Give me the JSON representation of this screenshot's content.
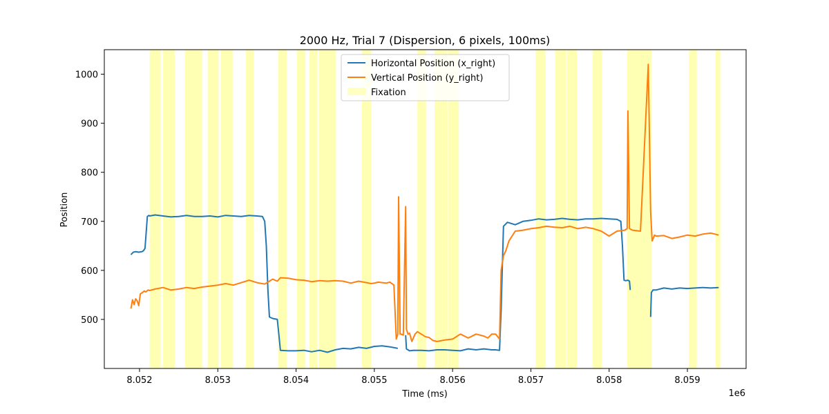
{
  "chart_data": {
    "type": "line",
    "title": "2000 Hz, Trial 7 (Dispersion, 6 pixels, 100ms)",
    "xlabel": "Time (ms)",
    "ylabel": "Position",
    "x_offset_label": "1e6",
    "xlim": [
      8.05155,
      8.05975
    ],
    "ylim": [
      400,
      1050
    ],
    "x_ticks": [
      8.052,
      8.053,
      8.054,
      8.055,
      8.056,
      8.057,
      8.058,
      8.059
    ],
    "x_tick_labels": [
      "8.052",
      "8.053",
      "8.054",
      "8.055",
      "8.056",
      "8.057",
      "8.058",
      "8.059"
    ],
    "y_ticks": [
      500,
      600,
      700,
      800,
      900,
      1000
    ],
    "y_tick_labels": [
      "500",
      "600",
      "700",
      "800",
      "900",
      "1000"
    ],
    "grid": false,
    "legend_position": "top-center",
    "legend": [
      {
        "label": "Horizontal Position (x_right)",
        "kind": "line",
        "color": "#1f77b4"
      },
      {
        "label": "Vertical Position (y_right)",
        "kind": "line",
        "color": "#ff7f0e"
      },
      {
        "label": "Fixation",
        "kind": "patch",
        "color": "#ffff99"
      }
    ],
    "fixation_color": "#ffff80",
    "fixation_opacity": 0.6,
    "fixations": [
      [
        8.05213,
        8.05227
      ],
      [
        8.0523,
        8.05245
      ],
      [
        8.05258,
        8.0528
      ],
      [
        8.05287,
        8.05301
      ],
      [
        8.05304,
        8.05319
      ],
      [
        8.05336,
        8.05346
      ],
      [
        8.05377,
        8.05388
      ],
      [
        8.05401,
        8.05412
      ],
      [
        8.05417,
        8.05427
      ],
      [
        8.05429,
        8.05451
      ],
      [
        8.05484,
        8.05496
      ],
      [
        8.05555,
        8.05566
      ],
      [
        8.05577,
        8.05593
      ],
      [
        8.05594,
        8.05608
      ],
      [
        8.05706,
        8.05719
      ],
      [
        8.05731,
        8.05745
      ],
      [
        8.05746,
        8.05759
      ],
      [
        8.05779,
        8.05791
      ],
      [
        8.05823,
        8.05854
      ],
      [
        8.05902,
        8.05912
      ],
      [
        8.05936,
        8.05942
      ]
    ],
    "series": [
      {
        "name": "Horizontal Position (x_right)",
        "color": "#1f77b4",
        "x": [
          8.05189,
          8.05192,
          8.05195,
          8.05199,
          8.05203,
          8.05205,
          8.05207,
          8.0521,
          8.05212,
          8.05213,
          8.0522,
          8.0523,
          8.0524,
          8.0525,
          8.0526,
          8.0527,
          8.0528,
          8.0529,
          8.053,
          8.0531,
          8.0532,
          8.0533,
          8.0534,
          8.0535,
          8.05357,
          8.0536,
          8.05362,
          8.05364,
          8.05366,
          8.0537,
          8.05376,
          8.05378,
          8.0538,
          8.0539,
          8.054,
          8.0541,
          8.0542,
          8.0543,
          8.0544,
          8.0545,
          8.0546,
          8.0547,
          8.0548,
          8.0549,
          8.055,
          8.0551,
          8.0552,
          8.0553,
          8.05531,
          8.0554,
          8.05541,
          8.05545,
          8.0555,
          8.0556,
          8.0557,
          8.0558,
          8.0559,
          8.056,
          8.0561,
          8.0562,
          8.0563,
          8.0564,
          8.0565,
          8.05655,
          8.0566,
          8.05662,
          8.05665,
          8.0567,
          8.0568,
          8.0569,
          8.057,
          8.0571,
          8.0572,
          8.0573,
          8.0574,
          8.0575,
          8.0576,
          8.0577,
          8.0578,
          8.0579,
          8.058,
          8.0581,
          8.05815,
          8.05817,
          8.05819,
          8.05821,
          8.05824,
          8.05826,
          8.05827,
          8.0583,
          8.0584,
          8.0585,
          8.05853,
          8.05854,
          8.05856,
          8.0586,
          8.0587,
          8.0588,
          8.0589,
          8.059,
          8.0591,
          8.0592,
          8.0593,
          8.0594
        ],
        "y": [
          632,
          637,
          638,
          637,
          638,
          640,
          645,
          710,
          712,
          711,
          713,
          711,
          709,
          710,
          712,
          710,
          710,
          711,
          709,
          712,
          711,
          710,
          712,
          711,
          710,
          700,
          650,
          560,
          505,
          502,
          500,
          470,
          437,
          436,
          436,
          437,
          434,
          437,
          433,
          438,
          441,
          440,
          443,
          441,
          445,
          446,
          444,
          441,
          null,
          468,
          440,
          436,
          437,
          437,
          436,
          438,
          438,
          437,
          436,
          440,
          438,
          440,
          438,
          438,
          437,
          520,
          690,
          698,
          693,
          700,
          702,
          705,
          703,
          704,
          706,
          704,
          703,
          705,
          705,
          706,
          705,
          704,
          700,
          650,
          580,
          579,
          580,
          578,
          560,
          null,
          null,
          null,
          505,
          555,
          560,
          560,
          564,
          562,
          564,
          563,
          564,
          565,
          564,
          565
        ]
      },
      {
        "name": "Vertical Position (y_right)",
        "color": "#ff7f0e",
        "x": [
          8.05189,
          8.05191,
          8.05193,
          8.05195,
          8.05197,
          8.05199,
          8.05201,
          8.05204,
          8.05206,
          8.05208,
          8.05211,
          8.05213,
          8.0522,
          8.0523,
          8.0524,
          8.0525,
          8.0526,
          8.0527,
          8.0528,
          8.0529,
          8.053,
          8.0531,
          8.0532,
          8.0533,
          8.0534,
          8.0535,
          8.0536,
          8.0537,
          8.05376,
          8.0538,
          8.0539,
          8.054,
          8.0541,
          8.0542,
          8.0543,
          8.0544,
          8.0545,
          8.0546,
          8.0547,
          8.0548,
          8.0549,
          8.05496,
          8.055,
          8.05505,
          8.0551,
          8.05515,
          8.0552,
          8.05525,
          8.05528,
          8.0553,
          8.05531,
          8.05533,
          8.05534,
          8.05537,
          8.0554,
          8.05541,
          8.05543,
          8.05545,
          8.05548,
          8.05552,
          8.05555,
          8.0556,
          8.05565,
          8.0557,
          8.05575,
          8.0558,
          8.0559,
          8.056,
          8.0561,
          8.0562,
          8.0563,
          8.0564,
          8.05645,
          8.0565,
          8.05655,
          8.0566,
          8.05662,
          8.05665,
          8.05668,
          8.05672,
          8.0568,
          8.0569,
          8.057,
          8.0571,
          8.0572,
          8.0573,
          8.0574,
          8.0575,
          8.0576,
          8.0577,
          8.0578,
          8.0579,
          8.058,
          8.0581,
          8.0582,
          8.05823,
          8.05824,
          8.05826,
          8.0583,
          8.0584,
          8.0585,
          8.05853,
          8.05855,
          8.05858,
          8.0586,
          8.0587,
          8.0588,
          8.0589,
          8.059,
          8.0591,
          8.0592,
          8.0593,
          8.0594
        ],
        "y": [
          522,
          540,
          530,
          542,
          538,
          528,
          552,
          555,
          558,
          556,
          560,
          559,
          562,
          565,
          560,
          562,
          565,
          563,
          566,
          568,
          570,
          573,
          570,
          575,
          580,
          575,
          572,
          582,
          578,
          585,
          584,
          581,
          580,
          577,
          579,
          578,
          579,
          578,
          574,
          578,
          575,
          573,
          574,
          576,
          575,
          574,
          576,
          570,
          460,
          470,
          750,
          470,
          470,
          468,
          730,
          480,
          470,
          472,
          455,
          470,
          475,
          470,
          465,
          463,
          457,
          455,
          458,
          460,
          470,
          462,
          470,
          466,
          462,
          470,
          470,
          460,
          600,
          630,
          640,
          660,
          680,
          682,
          685,
          687,
          690,
          688,
          687,
          690,
          685,
          688,
          685,
          680,
          670,
          680,
          682,
          685,
          925,
          685,
          682,
          680,
          1020,
          720,
          660,
          672,
          670,
          671,
          665,
          668,
          672,
          670,
          674,
          676,
          672
        ]
      }
    ]
  }
}
